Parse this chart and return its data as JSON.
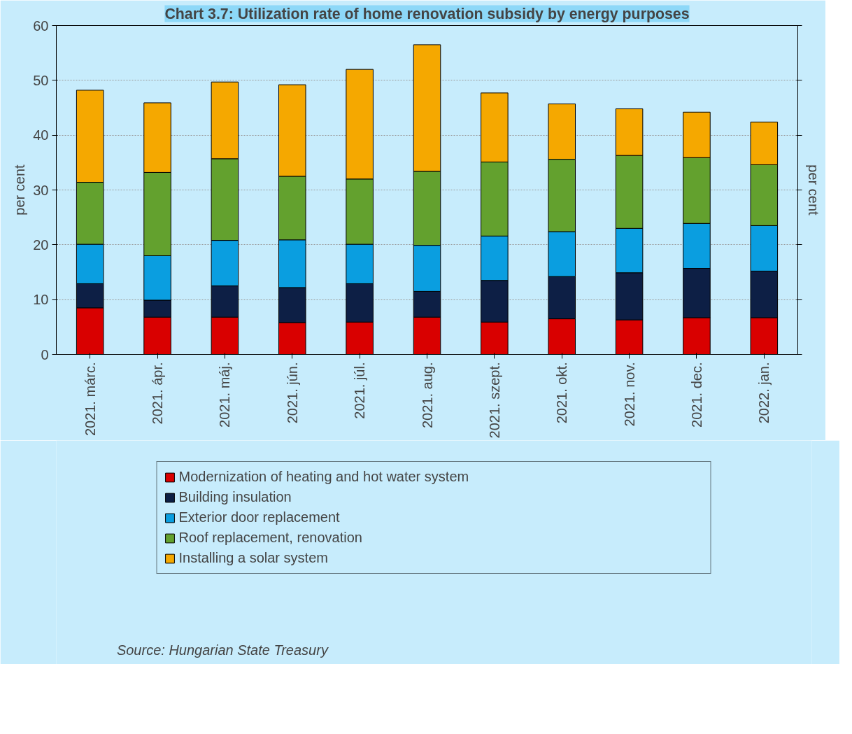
{
  "chart_data": {
    "type": "bar",
    "stacked": true,
    "title": "Chart 3.7: Utilization rate of home renovation subsidy by energy purposes",
    "ylabel": "per cent",
    "y2label": "per cent",
    "categories": [
      "2021. márc.",
      "2021. ápr.",
      "2021. máj.",
      "2021. jún.",
      "2021. júl.",
      "2021. aug.",
      "2021. szept.",
      "2021. okt.",
      "2021. nov.",
      "2021. dec.",
      "2022. jan."
    ],
    "series": [
      {
        "name": "Modernization of heating and hot water system",
        "color": "#d90000",
        "values": [
          8.5,
          6.8,
          6.8,
          5.8,
          5.9,
          6.8,
          5.9,
          6.5,
          6.3,
          6.7,
          6.7
        ]
      },
      {
        "name": "Building insulation",
        "color": "#0d1f45",
        "values": [
          4.4,
          3.1,
          5.7,
          6.4,
          7.0,
          4.7,
          7.6,
          7.7,
          8.6,
          9.0,
          8.5
        ]
      },
      {
        "name": "Exterior door replacement",
        "color": "#0a9ee0",
        "values": [
          7.2,
          8.1,
          8.3,
          8.7,
          7.2,
          8.4,
          8.1,
          8.2,
          8.1,
          8.2,
          8.3
        ]
      },
      {
        "name": "Roof replacement, renovation",
        "color": "#63a12e",
        "values": [
          11.3,
          15.2,
          14.9,
          11.6,
          11.9,
          13.5,
          13.5,
          13.2,
          13.3,
          12.0,
          11.1
        ]
      },
      {
        "name": "Installing a solar system",
        "color": "#f5a800",
        "values": [
          16.8,
          12.7,
          14.0,
          16.7,
          20.0,
          23.1,
          12.6,
          10.1,
          8.5,
          8.3,
          7.8
        ]
      }
    ],
    "ylim": [
      0,
      60
    ],
    "yticks": [
      0,
      10,
      20,
      30,
      40,
      50,
      60
    ],
    "grid": "y",
    "legend": "bottom",
    "annotations": [
      "Source: Hungarian State Treasury"
    ]
  }
}
